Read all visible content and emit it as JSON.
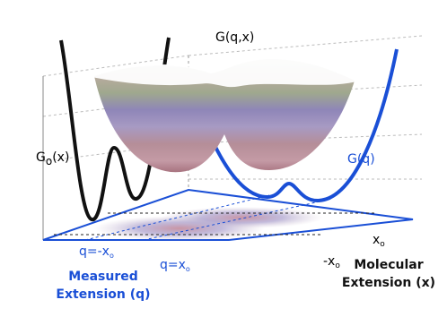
{
  "labels": {
    "surface": "G(q,x)",
    "g_o": {
      "base": "G",
      "sub": "o",
      "arg": "(x)"
    },
    "g_q": "G(q)",
    "x_pos": {
      "base": "x",
      "sub": "o"
    },
    "x_neg": {
      "base": "-x",
      "sub": "o"
    },
    "q_neg": {
      "base": "q=-x",
      "sub": "o"
    },
    "q_pos": {
      "base": "q=x",
      "sub": "o"
    },
    "measured": [
      "Measured",
      "Extension (q)"
    ],
    "molecular": [
      "Molecular",
      "Extension (x)"
    ]
  }
}
